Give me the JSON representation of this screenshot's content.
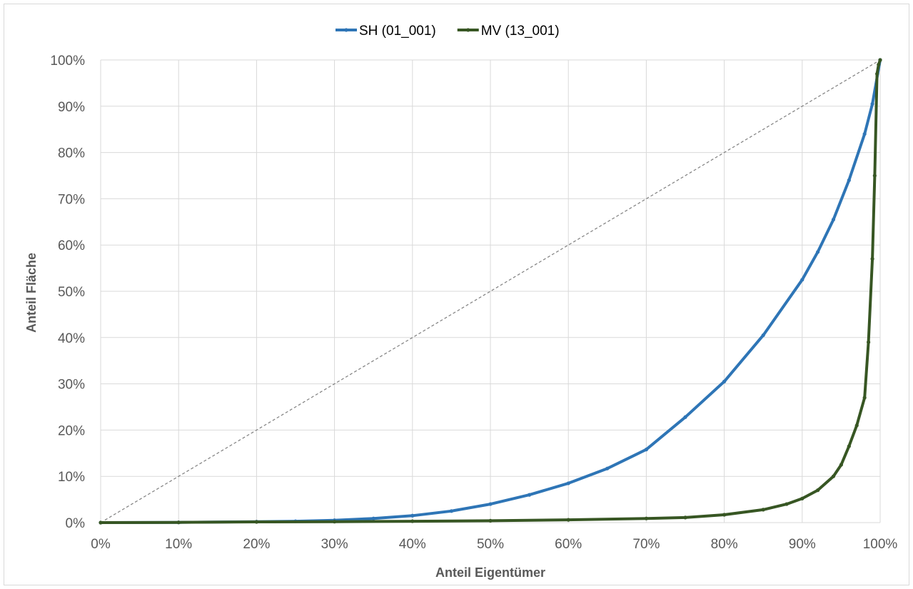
{
  "chart_data": {
    "type": "line",
    "xlabel": "Anteil Eigentümer",
    "ylabel": "Anteil Fläche",
    "xlim": [
      0,
      1
    ],
    "ylim": [
      0,
      1
    ],
    "x_ticks": [
      "0%",
      "10%",
      "20%",
      "30%",
      "40%",
      "50%",
      "60%",
      "70%",
      "80%",
      "90%",
      "100%"
    ],
    "y_ticks": [
      "0%",
      "10%",
      "20%",
      "30%",
      "40%",
      "50%",
      "60%",
      "70%",
      "80%",
      "90%",
      "100%"
    ],
    "grid": true,
    "legend_position": "top-center",
    "reference_line": {
      "style": "dashed",
      "x": [
        0,
        1
      ],
      "y": [
        0,
        1
      ],
      "color": "#7f7f7f"
    },
    "series": [
      {
        "name": "SH (01_001)",
        "color": "#2e75b6",
        "x": [
          0,
          0.1,
          0.2,
          0.25,
          0.3,
          0.35,
          0.4,
          0.45,
          0.5,
          0.55,
          0.6,
          0.65,
          0.7,
          0.75,
          0.8,
          0.85,
          0.9,
          0.92,
          0.94,
          0.96,
          0.98,
          0.99,
          1.0
        ],
        "y": [
          0,
          0.0005,
          0.002,
          0.003,
          0.005,
          0.009,
          0.015,
          0.025,
          0.04,
          0.06,
          0.085,
          0.117,
          0.158,
          0.228,
          0.305,
          0.405,
          0.525,
          0.585,
          0.655,
          0.74,
          0.84,
          0.905,
          1.0
        ]
      },
      {
        "name": "MV (13_001)",
        "color": "#375623",
        "x": [
          0,
          0.1,
          0.2,
          0.3,
          0.4,
          0.5,
          0.6,
          0.7,
          0.75,
          0.8,
          0.85,
          0.88,
          0.9,
          0.92,
          0.94,
          0.95,
          0.96,
          0.97,
          0.98,
          0.985,
          0.99,
          0.993,
          0.996,
          0.998,
          1.0
        ],
        "y": [
          0,
          0.0005,
          0.0015,
          0.002,
          0.003,
          0.004,
          0.006,
          0.009,
          0.011,
          0.017,
          0.028,
          0.04,
          0.052,
          0.07,
          0.1,
          0.125,
          0.165,
          0.21,
          0.27,
          0.39,
          0.57,
          0.75,
          0.97,
          0.99,
          1.0
        ]
      }
    ]
  }
}
